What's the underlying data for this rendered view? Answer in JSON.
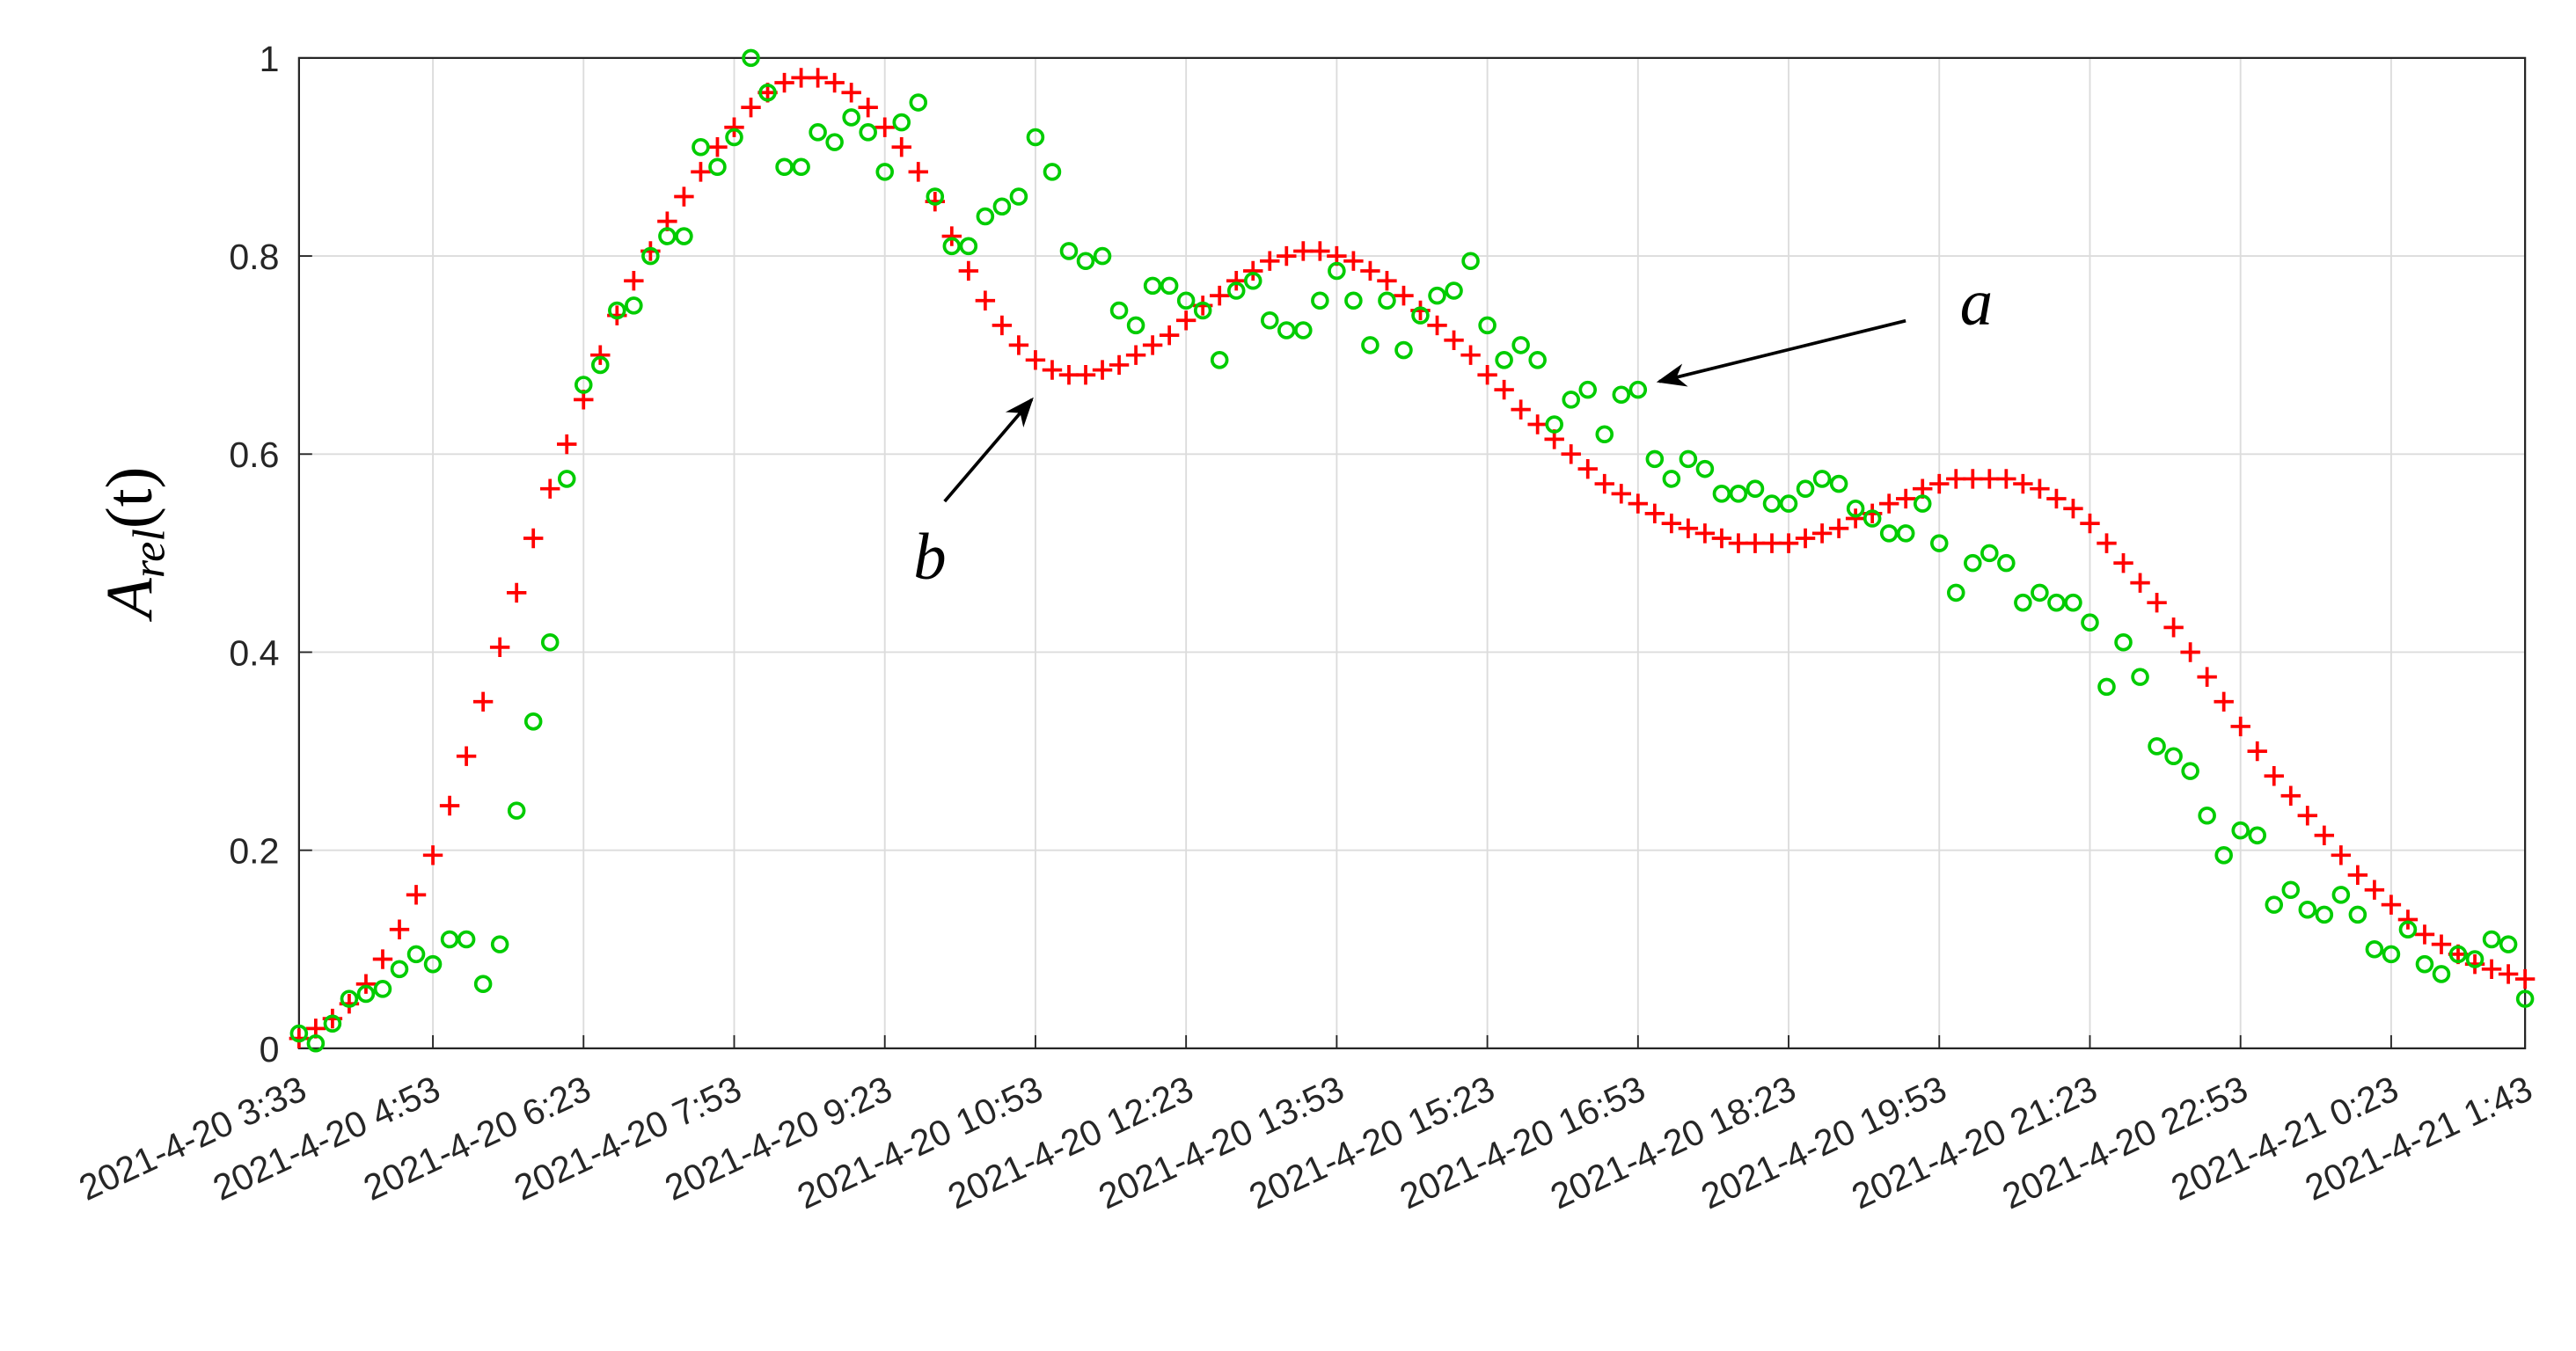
{
  "chart_data": {
    "type": "scatter",
    "ylabel": {
      "base": "A",
      "sub": "rel",
      "arg": "(t)"
    },
    "x": [
      "2021-4-20 3:33",
      "2021-4-20 3:43",
      "2021-4-20 3:53",
      "2021-4-20 4:03",
      "2021-4-20 4:13",
      "2021-4-20 4:23",
      "2021-4-20 4:33",
      "2021-4-20 4:43",
      "2021-4-20 4:53",
      "2021-4-20 5:03",
      "2021-4-20 5:13",
      "2021-4-20 5:23",
      "2021-4-20 5:33",
      "2021-4-20 5:43",
      "2021-4-20 5:53",
      "2021-4-20 6:03",
      "2021-4-20 6:13",
      "2021-4-20 6:23",
      "2021-4-20 6:33",
      "2021-4-20 6:43",
      "2021-4-20 6:53",
      "2021-4-20 7:03",
      "2021-4-20 7:13",
      "2021-4-20 7:23",
      "2021-4-20 7:33",
      "2021-4-20 7:43",
      "2021-4-20 7:53",
      "2021-4-20 8:03",
      "2021-4-20 8:13",
      "2021-4-20 8:23",
      "2021-4-20 8:33",
      "2021-4-20 8:43",
      "2021-4-20 8:53",
      "2021-4-20 9:03",
      "2021-4-20 9:13",
      "2021-4-20 9:23",
      "2021-4-20 9:33",
      "2021-4-20 9:43",
      "2021-4-20 9:53",
      "2021-4-20 10:03",
      "2021-4-20 10:13",
      "2021-4-20 10:23",
      "2021-4-20 10:33",
      "2021-4-20 10:43",
      "2021-4-20 10:53",
      "2021-4-20 11:03",
      "2021-4-20 11:13",
      "2021-4-20 11:23",
      "2021-4-20 11:33",
      "2021-4-20 11:43",
      "2021-4-20 11:53",
      "2021-4-20 12:03",
      "2021-4-20 12:13",
      "2021-4-20 12:23",
      "2021-4-20 12:33",
      "2021-4-20 12:43",
      "2021-4-20 12:53",
      "2021-4-20 13:03",
      "2021-4-20 13:13",
      "2021-4-20 13:23",
      "2021-4-20 13:33",
      "2021-4-20 13:43",
      "2021-4-20 13:53",
      "2021-4-20 14:03",
      "2021-4-20 14:13",
      "2021-4-20 14:23",
      "2021-4-20 14:33",
      "2021-4-20 14:43",
      "2021-4-20 14:53",
      "2021-4-20 15:03",
      "2021-4-20 15:13",
      "2021-4-20 15:23",
      "2021-4-20 15:33",
      "2021-4-20 15:43",
      "2021-4-20 15:53",
      "2021-4-20 16:03",
      "2021-4-20 16:13",
      "2021-4-20 16:23",
      "2021-4-20 16:33",
      "2021-4-20 16:43",
      "2021-4-20 16:53",
      "2021-4-20 17:03",
      "2021-4-20 17:13",
      "2021-4-20 17:23",
      "2021-4-20 17:33",
      "2021-4-20 17:43",
      "2021-4-20 17:53",
      "2021-4-20 18:03",
      "2021-4-20 18:13",
      "2021-4-20 18:23",
      "2021-4-20 18:33",
      "2021-4-20 18:43",
      "2021-4-20 18:53",
      "2021-4-20 19:03",
      "2021-4-20 19:13",
      "2021-4-20 19:23",
      "2021-4-20 19:33",
      "2021-4-20 19:43",
      "2021-4-20 19:53",
      "2021-4-20 20:03",
      "2021-4-20 20:13",
      "2021-4-20 20:23",
      "2021-4-20 20:33",
      "2021-4-20 20:43",
      "2021-4-20 20:53",
      "2021-4-20 21:03",
      "2021-4-20 21:13",
      "2021-4-20 21:23",
      "2021-4-20 21:33",
      "2021-4-20 21:43",
      "2021-4-20 21:53",
      "2021-4-20 22:03",
      "2021-4-20 22:13",
      "2021-4-20 22:23",
      "2021-4-20 22:33",
      "2021-4-20 22:43",
      "2021-4-20 22:53",
      "2021-4-20 23:03",
      "2021-4-20 23:13",
      "2021-4-20 23:23",
      "2021-4-20 23:33",
      "2021-4-20 23:43",
      "2021-4-20 23:53",
      "2021-4-21 0:03",
      "2021-4-21 0:13",
      "2021-4-21 0:23",
      "2021-4-21 0:33",
      "2021-4-21 0:43",
      "2021-4-21 0:53",
      "2021-4-21 1:03",
      "2021-4-21 1:13",
      "2021-4-21 1:23",
      "2021-4-21 1:33",
      "2021-4-21 1:43"
    ],
    "series": [
      {
        "name": "b",
        "marker": "plus",
        "color": "#ff0000",
        "values": [
          0.01,
          0.02,
          0.03,
          0.045,
          0.065,
          0.09,
          0.12,
          0.155,
          0.195,
          0.245,
          0.295,
          0.35,
          0.405,
          0.46,
          0.515,
          0.565,
          0.61,
          0.655,
          0.7,
          0.74,
          0.775,
          0.805,
          0.835,
          0.86,
          0.885,
          0.91,
          0.93,
          0.95,
          0.965,
          0.975,
          0.98,
          0.98,
          0.975,
          0.965,
          0.95,
          0.93,
          0.91,
          0.885,
          0.855,
          0.82,
          0.785,
          0.755,
          0.73,
          0.71,
          0.695,
          0.685,
          0.68,
          0.68,
          0.685,
          0.69,
          0.7,
          0.71,
          0.72,
          0.735,
          0.75,
          0.76,
          0.775,
          0.785,
          0.795,
          0.8,
          0.805,
          0.805,
          0.8,
          0.795,
          0.785,
          0.775,
          0.76,
          0.745,
          0.73,
          0.715,
          0.7,
          0.68,
          0.665,
          0.645,
          0.63,
          0.615,
          0.6,
          0.585,
          0.57,
          0.56,
          0.55,
          0.54,
          0.53,
          0.525,
          0.52,
          0.515,
          0.51,
          0.51,
          0.51,
          0.51,
          0.515,
          0.52,
          0.525,
          0.535,
          0.54,
          0.55,
          0.555,
          0.565,
          0.57,
          0.575,
          0.575,
          0.575,
          0.575,
          0.57,
          0.565,
          0.555,
          0.545,
          0.53,
          0.51,
          0.49,
          0.47,
          0.45,
          0.425,
          0.4,
          0.375,
          0.35,
          0.325,
          0.3,
          0.275,
          0.255,
          0.235,
          0.215,
          0.195,
          0.175,
          0.16,
          0.145,
          0.13,
          0.115,
          0.105,
          0.095,
          0.085,
          0.08,
          0.075,
          0.07
        ]
      },
      {
        "name": "a",
        "marker": "circle",
        "color": "#00cc00",
        "values": [
          0.015,
          0.005,
          0.025,
          0.05,
          0.055,
          0.06,
          0.08,
          0.095,
          0.085,
          0.11,
          0.11,
          0.065,
          0.105,
          0.24,
          0.33,
          0.41,
          0.575,
          0.67,
          0.69,
          0.745,
          0.75,
          0.8,
          0.82,
          0.82,
          0.91,
          0.89,
          0.92,
          1.0,
          0.965,
          0.89,
          0.89,
          0.925,
          0.915,
          0.94,
          0.925,
          0.885,
          0.935,
          0.955,
          0.86,
          0.81,
          0.81,
          0.84,
          0.85,
          0.86,
          0.92,
          0.885,
          0.805,
          0.795,
          0.8,
          0.745,
          0.73,
          0.77,
          0.77,
          0.755,
          0.745,
          0.695,
          0.765,
          0.775,
          0.735,
          0.725,
          0.725,
          0.755,
          0.785,
          0.755,
          0.71,
          0.755,
          0.705,
          0.74,
          0.76,
          0.765,
          0.795,
          0.73,
          0.695,
          0.71,
          0.695,
          0.63,
          0.655,
          0.665,
          0.62,
          0.66,
          0.665,
          0.595,
          0.575,
          0.595,
          0.585,
          0.56,
          0.56,
          0.565,
          0.55,
          0.55,
          0.565,
          0.575,
          0.57,
          0.545,
          0.535,
          0.52,
          0.52,
          0.55,
          0.51,
          0.46,
          0.49,
          0.5,
          0.49,
          0.45,
          0.46,
          0.45,
          0.45,
          0.43,
          0.365,
          0.41,
          0.375,
          0.305,
          0.295,
          0.28,
          0.235,
          0.195,
          0.22,
          0.215,
          0.145,
          0.16,
          0.14,
          0.135,
          0.155,
          0.135,
          0.1,
          0.095,
          0.12,
          0.085,
          0.075,
          0.095,
          0.09,
          0.11,
          0.105,
          0.05
        ]
      }
    ],
    "xlim": [
      "2021-4-20 3:33",
      "2021-4-21 1:43"
    ],
    "xticks": [
      "2021-4-20 3:33",
      "2021-4-20 4:53",
      "2021-4-20 6:23",
      "2021-4-20 7:53",
      "2021-4-20 9:23",
      "2021-4-20 10:53",
      "2021-4-20 12:23",
      "2021-4-20 13:53",
      "2021-4-20 15:23",
      "2021-4-20 16:53",
      "2021-4-20 18:23",
      "2021-4-20 19:53",
      "2021-4-20 21:23",
      "2021-4-20 22:53",
      "2021-4-21 0:23",
      "2021-4-21 1:43"
    ],
    "ylim": [
      0,
      1
    ],
    "yticks": [
      0,
      0.2,
      0.4,
      0.6,
      0.8,
      1
    ],
    "grid": true
  }
}
